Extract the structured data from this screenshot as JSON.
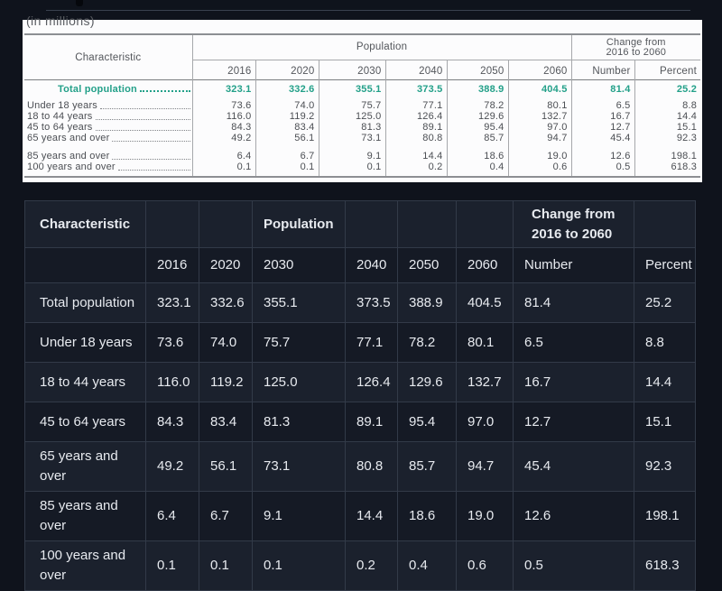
{
  "colors": {
    "page_bg": "#0f131c",
    "accent_teal": "#23a089",
    "row_light": "#1b212d",
    "row_dark": "#151a25"
  },
  "scan": {
    "note": "(in millions)",
    "header": {
      "characteristic": "Characteristic",
      "population": "Population",
      "change_line1": "Change from",
      "change_line2": "2016 to 2060",
      "years": [
        "2016",
        "2020",
        "2030",
        "2040",
        "2050",
        "2060"
      ],
      "number": "Number",
      "percent": "Percent"
    },
    "rows": [
      {
        "label": "Total population",
        "total": true,
        "values": [
          "323.1",
          "332.6",
          "355.1",
          "373.5",
          "388.9",
          "404.5",
          "81.4",
          "25.2"
        ]
      },
      {
        "label": "Under 18 years",
        "values": [
          "73.6",
          "74.0",
          "75.7",
          "77.1",
          "78.2",
          "80.1",
          "6.5",
          "8.8"
        ]
      },
      {
        "label": "18 to 44 years",
        "values": [
          "116.0",
          "119.2",
          "125.0",
          "126.4",
          "129.6",
          "132.7",
          "16.7",
          "14.4"
        ]
      },
      {
        "label": "45 to 64 years",
        "values": [
          "84.3",
          "83.4",
          "81.3",
          "89.1",
          "95.4",
          "97.0",
          "12.7",
          "15.1"
        ]
      },
      {
        "label": "65 years and over",
        "values": [
          "49.2",
          "56.1",
          "73.1",
          "80.8",
          "85.7",
          "94.7",
          "45.4",
          "92.3"
        ]
      },
      {
        "label": "85 years and over",
        "gap_before": true,
        "values": [
          "6.4",
          "6.7",
          "9.1",
          "14.4",
          "18.6",
          "19.0",
          "12.6",
          "198.1"
        ]
      },
      {
        "label": "100 years and over",
        "values": [
          "0.1",
          "0.1",
          "0.1",
          "0.2",
          "0.4",
          "0.6",
          "0.5",
          "618.3"
        ]
      }
    ]
  },
  "dark": {
    "header": {
      "characteristic": "Characteristic",
      "population": "Population",
      "change": "Change from 2016 to 2060",
      "years": [
        "2016",
        "2020",
        "2030",
        "2040",
        "2050",
        "2060"
      ],
      "number": "Number",
      "percent": "Percent"
    },
    "rows": [
      {
        "label": "Total population",
        "values": [
          "323.1",
          "332.6",
          "355.1",
          "373.5",
          "388.9",
          "404.5",
          "81.4",
          "25.2"
        ]
      },
      {
        "label": "Under 18 years",
        "values": [
          "73.6",
          "74.0",
          "75.7",
          "77.1",
          "78.2",
          "80.1",
          "6.5",
          "8.8"
        ]
      },
      {
        "label": "18 to 44 years",
        "values": [
          "116.0",
          "119.2",
          "125.0",
          "126.4",
          "129.6",
          "132.7",
          "16.7",
          "14.4"
        ]
      },
      {
        "label": "45 to 64 years",
        "values": [
          "84.3",
          "83.4",
          "81.3",
          "89.1",
          "95.4",
          "97.0",
          "12.7",
          "15.1"
        ]
      },
      {
        "label": "65 years and over",
        "values": [
          "49.2",
          "56.1",
          "73.1",
          "80.8",
          "85.7",
          "94.7",
          "45.4",
          "92.3"
        ]
      },
      {
        "label": "85 years and over",
        "values": [
          "6.4",
          "6.7",
          "9.1",
          "14.4",
          "18.6",
          "19.0",
          "12.6",
          "198.1"
        ]
      },
      {
        "label": "100 years and over",
        "values": [
          "0.1",
          "0.1",
          "0.1",
          "0.2",
          "0.4",
          "0.6",
          "0.5",
          "618.3"
        ]
      }
    ]
  }
}
